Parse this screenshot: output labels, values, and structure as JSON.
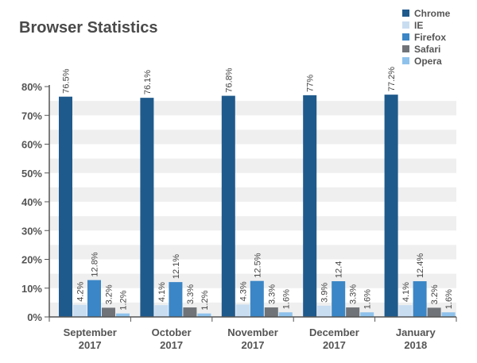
{
  "chart_data": {
    "type": "bar",
    "title": "Browser Statistics",
    "xlabel": "",
    "ylabel": "",
    "ylim": [
      0,
      80
    ],
    "y_ticks": [
      "0%",
      "10%",
      "20%",
      "30%",
      "40%",
      "50%",
      "60%",
      "70%",
      "80%"
    ],
    "grid": "alternating horizontal bands",
    "legend_position": "top-right",
    "categories": [
      [
        "September",
        "2017"
      ],
      [
        "October",
        "2017"
      ],
      [
        "November",
        "2017"
      ],
      [
        "December",
        "2017"
      ],
      [
        "January",
        "2018"
      ]
    ],
    "series": [
      {
        "name": "Chrome",
        "color": "#1f5a8c",
        "values": [
          76.5,
          76.1,
          76.8,
          77,
          77.2
        ],
        "labels": [
          "76.5%",
          "76.1%",
          "76.8%",
          "77%",
          "77.2%"
        ]
      },
      {
        "name": "IE",
        "color": "#c9ddf1",
        "values": [
          4.2,
          4.1,
          4.3,
          3.9,
          4.1
        ],
        "labels": [
          "4.2%",
          "4.1%",
          "4.3%",
          "3.9%",
          "4.1%"
        ]
      },
      {
        "name": "Firefox",
        "color": "#3b86c6",
        "values": [
          12.8,
          12.1,
          12.5,
          12.4,
          12.4
        ],
        "labels": [
          "12.8%",
          "12.1%",
          "12.5%",
          "12.4",
          "12.4%"
        ]
      },
      {
        "name": "Safari",
        "color": "#707377",
        "values": [
          3.2,
          3.3,
          3.3,
          3.3,
          3.2
        ],
        "labels": [
          "3.2%",
          "3.3%",
          "3.3%",
          "3.3%",
          "3.2%"
        ]
      },
      {
        "name": "Opera",
        "color": "#8ec2ec",
        "values": [
          1.2,
          1.2,
          1.6,
          1.6,
          1.6
        ],
        "labels": [
          "1.2%",
          "1.2%",
          "1.6%",
          "1.6%",
          "1.6%"
        ]
      }
    ]
  }
}
